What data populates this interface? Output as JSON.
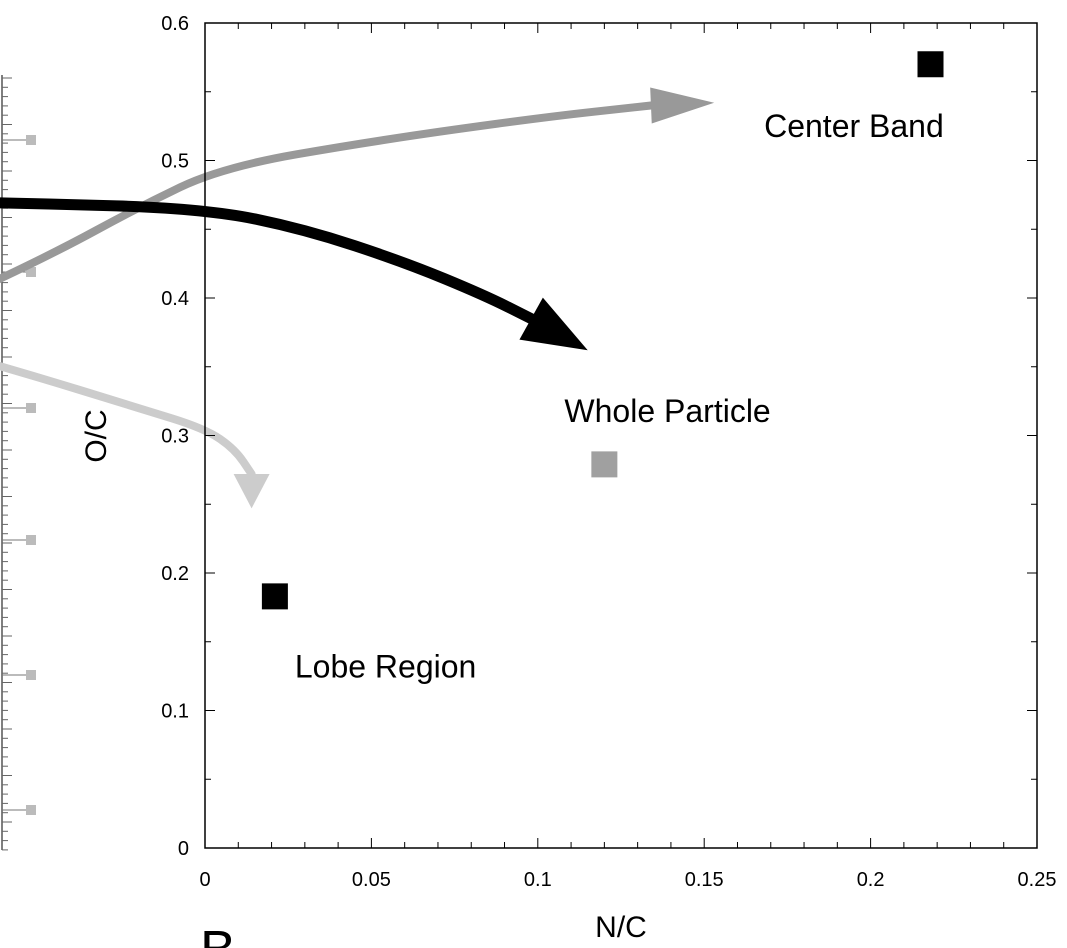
{
  "chart_data": {
    "type": "scatter",
    "xlabel": "N/C",
    "ylabel": "O/C",
    "xlim": [
      0,
      0.25
    ],
    "ylim": [
      0,
      0.6
    ],
    "x_ticks": [
      "0",
      "0.05",
      "0.1",
      "0.15",
      "0.2",
      "0.25"
    ],
    "y_ticks": [
      "0",
      "0.1",
      "0.2",
      "0.3",
      "0.4",
      "0.5",
      "0.6"
    ],
    "grid": false,
    "points": [
      {
        "label": "Center Band",
        "x": 0.218,
        "y": 0.57,
        "color": "#000000"
      },
      {
        "label": "Whole Particle",
        "x": 0.12,
        "y": 0.279,
        "color": "#a0a0a0"
      },
      {
        "label": "Lobe Region",
        "x": 0.021,
        "y": 0.183,
        "color": "#000000"
      }
    ],
    "annotations": [
      {
        "text": "Center Band",
        "x": 0.168,
        "y": 0.525
      },
      {
        "text": "Whole Particle",
        "x": 0.108,
        "y": 0.318
      },
      {
        "text": "Lobe Region",
        "x": 0.027,
        "y": 0.132
      }
    ],
    "arrows": [
      {
        "color": "#999999",
        "points": [
          [
            -0.154,
            0.295
          ],
          [
            -0.129,
            0.315
          ],
          [
            -0.102,
            0.359
          ],
          [
            -0.08,
            0.393
          ],
          [
            -0.045,
            0.433
          ],
          [
            -0.02,
            0.466
          ],
          [
            0.005,
            0.495
          ],
          [
            0.05,
            0.514
          ],
          [
            0.1,
            0.531
          ],
          [
            0.134,
            0.54
          ]
        ],
        "head_to": [
          0.153,
          0.542
        ]
      },
      {
        "color": "#000000",
        "points": [
          [
            -0.146,
            0.464
          ],
          [
            -0.107,
            0.471
          ],
          [
            -0.053,
            0.469
          ],
          [
            0.0,
            0.465
          ],
          [
            0.03,
            0.45
          ],
          [
            0.06,
            0.426
          ],
          [
            0.084,
            0.402
          ],
          [
            0.098,
            0.385
          ]
        ],
        "head_to": [
          0.115,
          0.362
        ]
      },
      {
        "color": "#cccccc",
        "points": [
          [
            -0.154,
            0.396
          ],
          [
            -0.125,
            0.386
          ],
          [
            -0.09,
            0.37
          ],
          [
            -0.055,
            0.346
          ],
          [
            -0.02,
            0.32
          ],
          [
            0.0,
            0.305
          ],
          [
            0.009,
            0.29
          ],
          [
            0.014,
            0.272
          ]
        ],
        "head_to": [
          0.014,
          0.247
        ]
      }
    ]
  },
  "panel_letter": "B"
}
